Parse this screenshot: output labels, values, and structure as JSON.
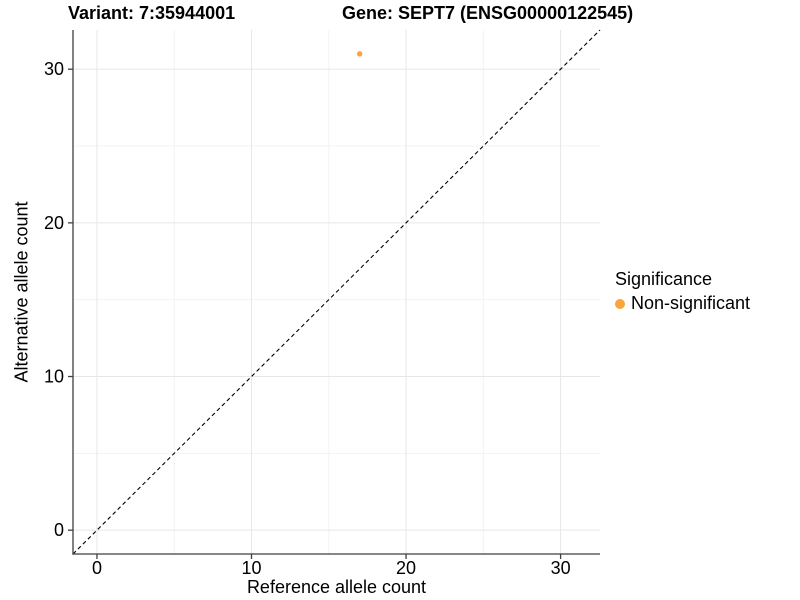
{
  "chart_data": {
    "type": "scatter",
    "title_left": "Variant: 7:35944001",
    "title_right": "Gene: SEPT7 (ENSG00000122545)",
    "xlabel": "Reference allele count",
    "ylabel": "Alternative allele count",
    "xlim": [
      -1.55,
      32.55
    ],
    "ylim": [
      -1.55,
      32.55
    ],
    "xticks": [
      0,
      10,
      20,
      30
    ],
    "yticks": [
      0,
      10,
      20,
      30
    ],
    "xminor": [
      5,
      15,
      25
    ],
    "yminor": [
      5,
      15,
      25
    ],
    "grid": "major+minor on white background",
    "points": [
      {
        "x": 17,
        "y": 31,
        "series": "Non-significant"
      }
    ],
    "series": [
      {
        "name": "Non-significant",
        "color": "#FAA43A"
      }
    ],
    "reference_line": {
      "kind": "identity y=x",
      "dashed": true,
      "color": "#000000"
    },
    "legend": {
      "title": "Significance",
      "position": "right",
      "items": [
        {
          "label": "Non-significant",
          "color": "#FAA43A"
        }
      ]
    },
    "colors": {
      "axis": "#3F3F3F",
      "grid_major": "#E7E7E7",
      "grid_minor": "#F3F3F3",
      "text": "#000000"
    }
  }
}
